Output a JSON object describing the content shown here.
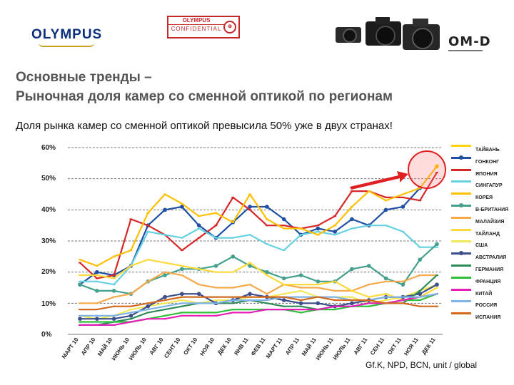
{
  "header": {
    "brand": "OLYMPUS",
    "stamp_top": "OLYMPUS",
    "stamp_bottom": "CONFIDENTIAL",
    "product_logo": "OM-D"
  },
  "title_line1": "Основные тренды –",
  "title_line2": "Рыночная доля камер со сменной оптикой по регионам",
  "subtitle": "Доля рынка камер со сменной оптикой превысила 50% уже в двух странах!",
  "source": "Gf.K, NPD, BCN, unit / global",
  "chart_data": {
    "type": "line",
    "categories": [
      "МАРТ 10",
      "АПР 10",
      "МАЙ 10",
      "ИЮНЬ 10",
      "ИЮЛЬ 10",
      "АВГ 10",
      "СЕНТ 10",
      "ОКТ 10",
      "НОЯ 10",
      "ДЕК 10",
      "ЯНВ 11",
      "ФЕВ 11",
      "МАРТ 11",
      "АПР 11",
      "МАЙ 11",
      "ИЮНЬ 11",
      "ИЮЛЬ 11",
      "АВГ 11",
      "СЕН 11",
      "ОКТ 11",
      "НОЯ 11",
      "ДЕК 11"
    ],
    "yticks": [
      "0%",
      "10%",
      "20%",
      "30%",
      "40%",
      "50%",
      "60%"
    ],
    "ylim": [
      0,
      60
    ],
    "grid": true,
    "legend_position": "right",
    "series": [
      {
        "name": "ТАЙВАНЬ",
        "color": "#ffd400",
        "values": [
          null,
          null,
          null,
          null,
          null,
          null,
          null,
          null,
          null,
          null,
          null,
          null,
          null,
          null,
          null,
          null,
          null,
          null,
          null,
          null,
          null,
          54
        ]
      },
      {
        "name": "ГОНКОНГ",
        "color": "#1f4fa3",
        "marker": true,
        "values": [
          16,
          20,
          19,
          22,
          35,
          40,
          41,
          35,
          31,
          36,
          41,
          41,
          37,
          32,
          34,
          33,
          37,
          35,
          40,
          41,
          47,
          null
        ]
      },
      {
        "name": "ЯПОНИЯ",
        "color": "#d62728",
        "values": [
          23,
          18,
          19,
          37,
          35,
          32,
          27,
          31,
          35,
          44,
          40,
          35,
          35,
          34,
          35,
          38,
          46,
          46,
          44,
          44,
          43,
          52
        ]
      },
      {
        "name": "СИНГАПУР",
        "color": "#66d1e0",
        "values": [
          17,
          17,
          16,
          22,
          33,
          32,
          31,
          34,
          31,
          31,
          32,
          29,
          27,
          32,
          33,
          32,
          34,
          35,
          35,
          33,
          28,
          28
        ]
      },
      {
        "name": "КОРЕЯ",
        "color": "#ffc000",
        "values": [
          24,
          22,
          25,
          27,
          39,
          45,
          42,
          38,
          39,
          36,
          45,
          37,
          34,
          34,
          32,
          35,
          41,
          46,
          43,
          45,
          47,
          54
        ]
      },
      {
        "name": "В-БРИТАНИЯ",
        "color": "#44a08d",
        "marker": true,
        "values": [
          16,
          14,
          14,
          13,
          17,
          19,
          21,
          21,
          22,
          25,
          22,
          20,
          18,
          19,
          17,
          17,
          21,
          22,
          18,
          16,
          24,
          29
        ]
      },
      {
        "name": "МАЛАЙЗИЯ",
        "color": "#f6a94a",
        "values": [
          10,
          10,
          12,
          13,
          17,
          20,
          19,
          16,
          15,
          15,
          16,
          13,
          16,
          15,
          15,
          14,
          14,
          16,
          17,
          17,
          19,
          19
        ]
      },
      {
        "name": "ТАЙЛАНД",
        "color": "#ffd93a",
        "values": [
          19,
          19,
          18,
          22,
          24,
          23,
          22,
          21,
          20,
          20,
          23,
          19,
          16,
          16,
          16,
          17,
          14,
          12,
          13,
          11,
          12,
          15
        ]
      },
      {
        "name": "США",
        "color": "#f2e85a",
        "values": [
          6,
          5,
          6,
          8,
          9,
          10,
          11,
          10,
          11,
          11,
          12,
          12,
          13,
          14,
          12,
          12,
          12,
          10,
          11,
          12,
          14,
          16
        ]
      },
      {
        "name": "АВСТРАЛИЯ",
        "color": "#3b4d8a",
        "marker": true,
        "values": [
          5,
          5,
          5,
          6,
          9,
          12,
          13,
          13,
          10,
          11,
          13,
          12,
          11,
          10,
          10,
          9,
          10,
          11,
          12,
          12,
          13,
          16
        ]
      },
      {
        "name": "ГЕРМАНИЯ",
        "color": "#2e8b57",
        "values": [
          3,
          3,
          4,
          5,
          7,
          8,
          9,
          10,
          10,
          10,
          11,
          10,
          9,
          9,
          8,
          9,
          9,
          10,
          10,
          10,
          14,
          19
        ]
      },
      {
        "name": "ФРАНЦИЯ",
        "color": "#2fbf3a",
        "values": [
          4,
          4,
          4,
          4,
          5,
          6,
          7,
          7,
          7,
          8,
          8,
          8,
          8,
          7,
          8,
          8,
          9,
          9,
          10,
          11,
          11,
          13
        ]
      },
      {
        "name": "КИТАЙ",
        "color": "#e41fb8",
        "values": [
          3,
          3,
          3,
          4,
          5,
          5,
          6,
          6,
          6,
          7,
          7,
          8,
          8,
          8,
          8,
          9,
          9,
          10,
          10,
          11,
          12,
          13
        ]
      },
      {
        "name": "РОССИЯ",
        "color": "#7fb3e6",
        "values": [
          6,
          6,
          6,
          7,
          8,
          9,
          10,
          10,
          10,
          11,
          11,
          11,
          12,
          12,
          12,
          12,
          11,
          11,
          12,
          12,
          12,
          13
        ]
      },
      {
        "name": "ИСПАНИЯ",
        "color": "#d2691e",
        "values": [
          8,
          8,
          9,
          9,
          10,
          11,
          12,
          12,
          12,
          12,
          12,
          12,
          12,
          11,
          12,
          11,
          11,
          11,
          10,
          10,
          9,
          9
        ]
      }
    ]
  }
}
